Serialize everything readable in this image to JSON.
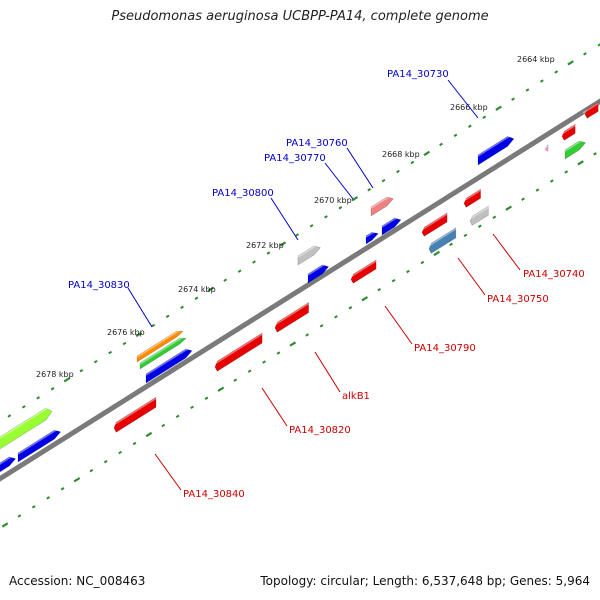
{
  "title": "Pseudomonas aeruginosa UCBPP-PA14, complete genome",
  "footer": {
    "accession": "Accession: NC_008463",
    "summary": "Topology: circular; Length: 6,537,648 bp; Genes: 5,964"
  },
  "ticks": [
    {
      "text": "2664 kbp"
    },
    {
      "text": "2666 kbp"
    },
    {
      "text": "2668 kbp"
    },
    {
      "text": "2670 kbp"
    },
    {
      "text": "2672 kbp"
    },
    {
      "text": "2674 kbp"
    },
    {
      "text": "2676 kbp"
    },
    {
      "text": "2678 kbp"
    }
  ],
  "labels": [
    {
      "text": "PA14_30730",
      "color": "#0000cc"
    },
    {
      "text": "PA14_30760",
      "color": "#0000cc"
    },
    {
      "text": "PA14_30770",
      "color": "#0000cc"
    },
    {
      "text": "PA14_30800",
      "color": "#0000cc"
    },
    {
      "text": "PA14_30830",
      "color": "#0000cc"
    },
    {
      "text": "PA14_30740",
      "color": "#cc0000"
    },
    {
      "text": "PA14_30750",
      "color": "#cc0000"
    },
    {
      "text": "PA14_30790",
      "color": "#cc0000"
    },
    {
      "text": "alkB1",
      "color": "#cc0000"
    },
    {
      "text": "PA14_30820",
      "color": "#cc0000"
    },
    {
      "text": "PA14_30840",
      "color": "#cc0000"
    }
  ],
  "colors": {
    "backbone": "#7a7a7a",
    "tick": "#2e8b2e",
    "forward_gene": "#0000e6",
    "reverse_gene": "#e60000",
    "grey_gene": "#c0c0c0",
    "pink_gene": "#f08080",
    "steel_gene": "#4682b4",
    "green_gene": "#33cc33",
    "orange_gene": "#ff8c00",
    "lime_gene": "#99ff33",
    "magenta_gene": "#ff99cc"
  }
}
